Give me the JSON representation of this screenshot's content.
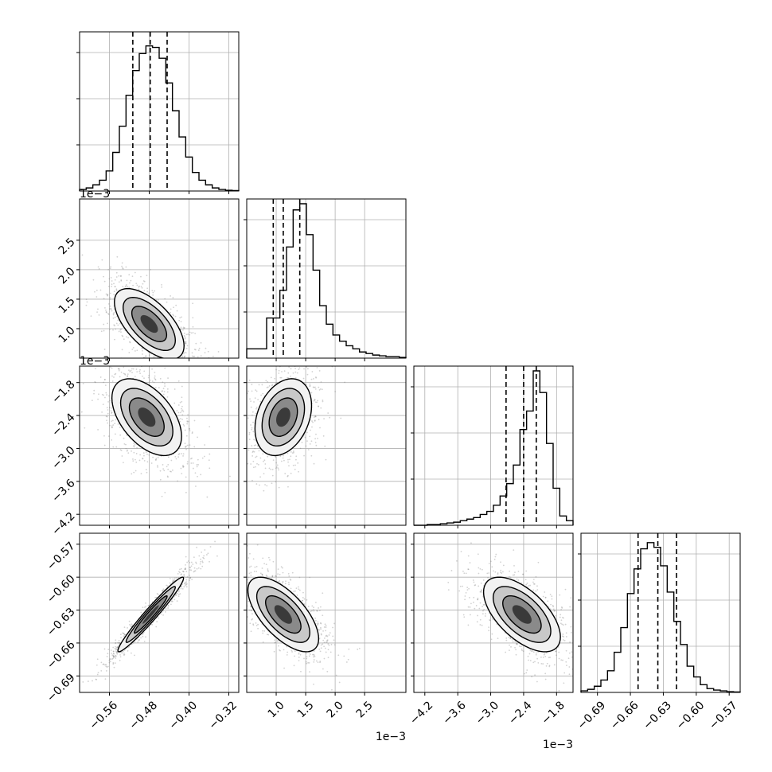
{
  "chart_data": {
    "type": "corner",
    "grid": true,
    "colors": {
      "ink": "#000000",
      "grid": "#b0b0b0",
      "scatter": "#7f7f7f"
    },
    "scale_labels": [
      "1e−3",
      "1e−3",
      "1e−3",
      "1e−3"
    ],
    "parameters": [
      {
        "range": [
          -0.62,
          -0.3
        ],
        "ticks": [
          -0.56,
          -0.48,
          -0.4,
          -0.32
        ],
        "tick_labels": [
          "−0.56",
          "−0.48",
          "−0.40",
          "−0.32"
        ],
        "quantiles": [
          -0.513,
          -0.478,
          -0.444
        ],
        "hist": [
          1,
          2,
          4,
          7,
          13,
          25,
          42,
          62,
          78,
          89,
          94,
          93,
          86,
          70,
          52,
          35,
          22,
          12,
          7,
          4,
          2,
          1,
          0.5,
          0.3
        ]
      },
      {
        "range": [
          0.0005,
          0.0032
        ],
        "ticks": [
          0.001,
          0.0015,
          0.002,
          0.0025
        ],
        "tick_labels": [
          "1.0",
          "1.5",
          "2.0",
          "2.5"
        ],
        "quantiles": [
          0.00095,
          0.00112,
          0.0014
        ],
        "hist": [
          6,
          6,
          6,
          26,
          26,
          44,
          72,
          96,
          100,
          80,
          57,
          34,
          22,
          15,
          11,
          8,
          6,
          4,
          3,
          2,
          1.5,
          1,
          1,
          0.5
        ]
      },
      {
        "range": [
          -0.0044,
          -0.0015
        ],
        "ticks": [
          -0.0042,
          -0.0036,
          -0.003,
          -0.0024,
          -0.0018
        ],
        "tick_labels": [
          "−4.2",
          "−3.6",
          "−3.0",
          "−2.4",
          "−1.8"
        ],
        "quantiles": [
          -0.00272,
          -0.0024,
          -0.00217
        ],
        "hist": [
          0,
          0,
          0.5,
          0.5,
          1,
          1.5,
          2,
          3,
          4,
          5,
          7,
          9,
          13,
          19,
          27,
          39,
          62,
          74,
          100,
          86,
          53,
          24,
          6,
          3
        ]
      },
      {
        "range": [
          -0.705,
          -0.56
        ],
        "ticks": [
          -0.69,
          -0.66,
          -0.63,
          -0.6,
          -0.57
        ],
        "tick_labels": [
          "−0.69",
          "−0.66",
          "−0.63",
          "−0.60",
          "−0.57"
        ],
        "quantiles": [
          -0.653,
          -0.635,
          -0.618
        ],
        "hist": [
          1,
          2,
          4,
          8,
          14,
          26,
          42,
          64,
          80,
          93,
          97,
          94,
          82,
          65,
          46,
          31,
          17,
          10,
          5,
          2.5,
          1.5,
          1,
          0.5,
          0.3
        ]
      }
    ],
    "pairs": [
      {
        "x": 0,
        "y": 1,
        "mean": [
          -0.48,
          0.00108
        ],
        "sd": [
          0.035,
          0.0003
        ],
        "rho": -0.62
      },
      {
        "x": 0,
        "y": 2,
        "mean": [
          -0.485,
          -0.00243
        ],
        "sd": [
          0.035,
          0.00035
        ],
        "rho": -0.5
      },
      {
        "x": 1,
        "y": 2,
        "mean": [
          0.00112,
          -0.00243
        ],
        "sd": [
          0.00024,
          0.00035
        ],
        "rho": 0.3
      },
      {
        "x": 0,
        "y": 3,
        "mean": [
          -0.477,
          -0.634
        ],
        "sd": [
          0.033,
          0.017
        ],
        "rho": 0.97
      },
      {
        "x": 1,
        "y": 3,
        "mean": [
          0.00112,
          -0.634
        ],
        "sd": [
          0.0003,
          0.017
        ],
        "rho": -0.65
      },
      {
        "x": 2,
        "y": 3,
        "mean": [
          -0.00243,
          -0.634
        ],
        "sd": [
          0.00035,
          0.017
        ],
        "rho": -0.6
      }
    ]
  }
}
